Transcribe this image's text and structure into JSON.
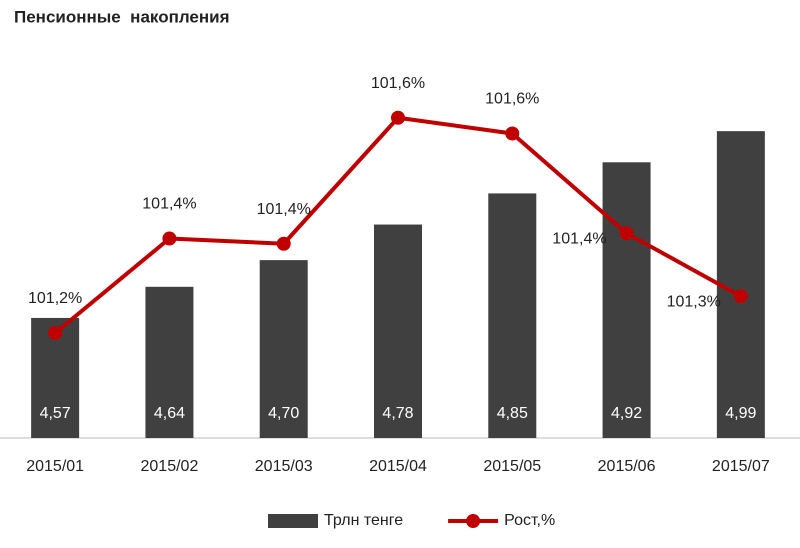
{
  "chart_data": {
    "type": "bar-line",
    "title": "Пенсионные  накопления",
    "categories": [
      "2015/01",
      "2015/02",
      "2015/03",
      "2015/04",
      "2015/05",
      "2015/06",
      "2015/07"
    ],
    "series": [
      {
        "name": "Трлн тенге",
        "type": "bar",
        "color": "#404040",
        "values": [
          4.57,
          4.64,
          4.7,
          4.78,
          4.85,
          4.92,
          4.99
        ],
        "value_labels": [
          "4,57",
          "4,64",
          "4,70",
          "4,78",
          "4,85",
          "4,92",
          "4,99"
        ]
      },
      {
        "name": "Рост,%",
        "type": "line",
        "axis": "y2",
        "color": "#c00000",
        "values": [
          101.2,
          101.38,
          101.37,
          101.61,
          101.58,
          101.39,
          101.27
        ],
        "value_labels": [
          "101,2%",
          "101,4%",
          "101,4%",
          "101,6%",
          "101,6%",
          "101,4%",
          "101,3%"
        ]
      }
    ],
    "ylim": [
      4.3,
      5.15
    ],
    "y2lim": [
      101.0,
      101.72
    ],
    "legend": "bottom"
  }
}
